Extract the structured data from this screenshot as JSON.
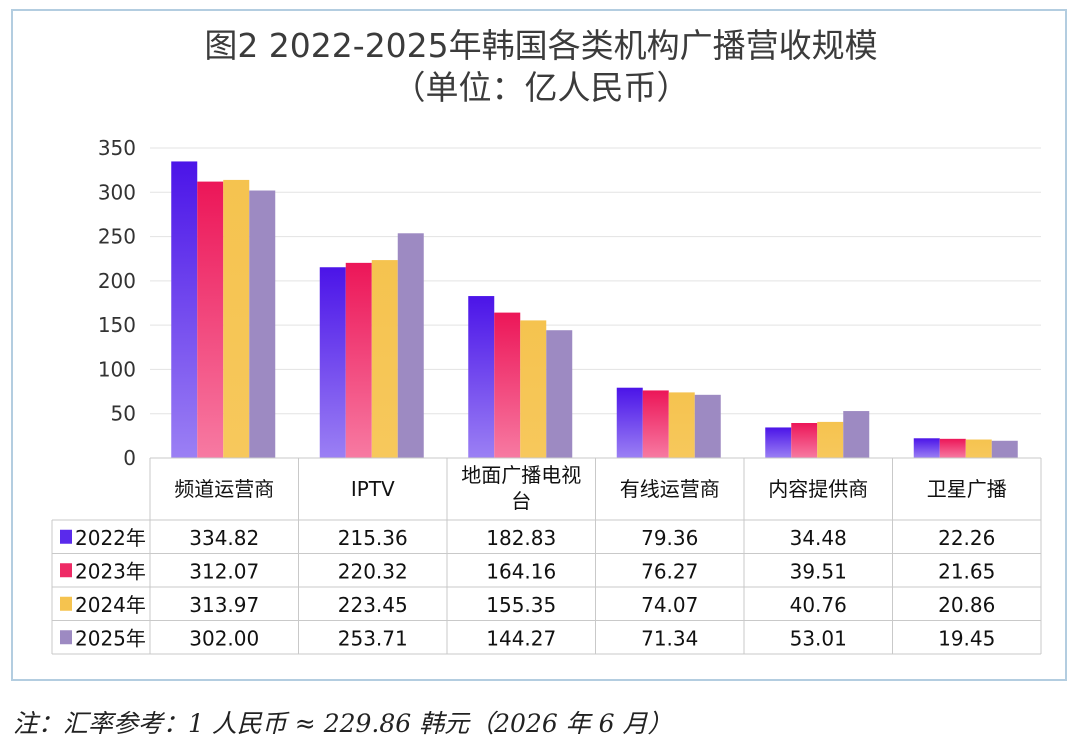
{
  "chart_data": {
    "type": "bar",
    "title": "图2 2022-2025年韩国各类机构广播营收规模",
    "subtitle": "（单位：亿人民币）",
    "categories": [
      "频道运营商",
      "IPTV",
      "地面广播电视台",
      "有线运营商",
      "内容提供商",
      "卫星广播"
    ],
    "series": [
      {
        "name": "2022年",
        "values": [
          334.82,
          215.36,
          182.83,
          79.36,
          34.48,
          22.26
        ],
        "color_top": "#4b14e8",
        "color_bottom": "#9b80f4",
        "legend_color": "#5a2aec"
      },
      {
        "name": "2023年",
        "values": [
          312.07,
          220.32,
          164.16,
          76.27,
          39.51,
          21.65
        ],
        "color_top": "#ec1658",
        "color_bottom": "#f77aa2",
        "legend_color": "#ee2a65"
      },
      {
        "name": "2024年",
        "values": [
          313.97,
          223.45,
          155.35,
          74.07,
          40.76,
          20.86
        ],
        "color_top": "#f5c34f",
        "color_bottom": "#f7c85c",
        "legend_color": "#f5c34f"
      },
      {
        "name": "2025年",
        "values": [
          302.0,
          253.71,
          144.27,
          71.34,
          53.01,
          19.45
        ],
        "color_top": "#9d8ac2",
        "color_bottom": "#9d8ac2",
        "legend_color": "#9d8ac2"
      }
    ],
    "yticks": [
      0,
      50,
      100,
      150,
      200,
      250,
      300,
      350
    ],
    "ylim": [
      0,
      350
    ],
    "grid": true,
    "legend_placement": "data-table"
  },
  "note": "注：汇率参考：1 人民币 ≈ 229.86 韩元（2026 年 6 月）"
}
